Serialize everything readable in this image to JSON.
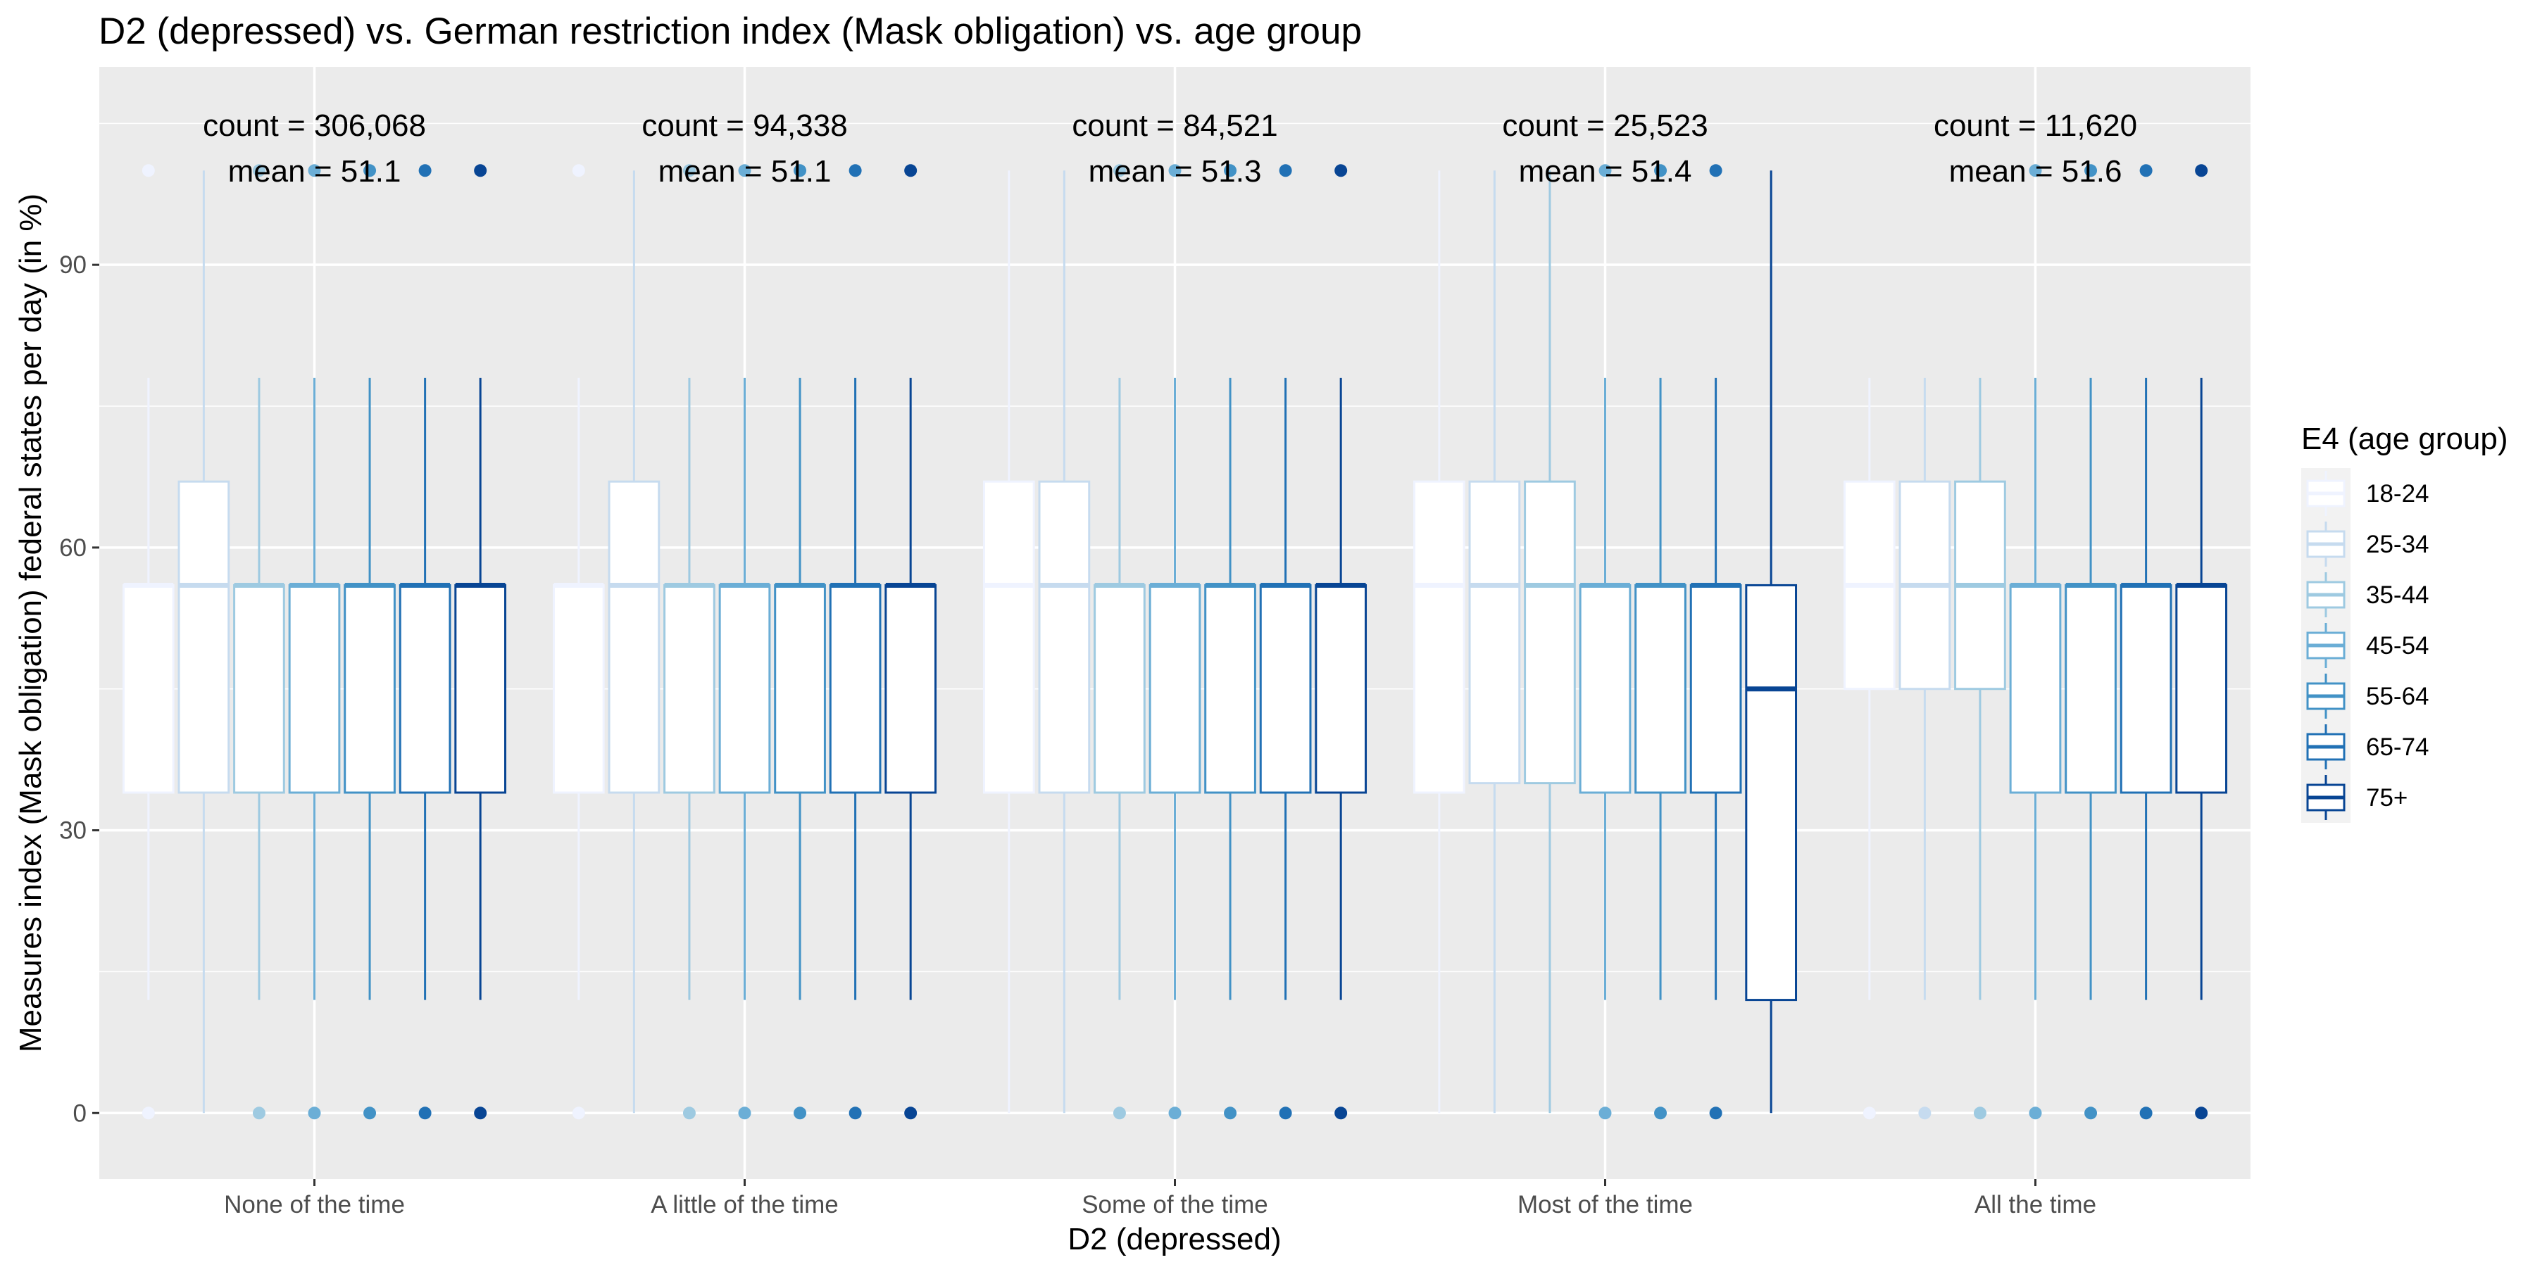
{
  "chart_data": {
    "type": "boxplot",
    "title": "D2 (depressed) vs. German restriction index (Mask obligation) vs. age group",
    "xlabel": "D2 (depressed)",
    "ylabel": "Measures index (Mask obligation) federal states per day (in %)",
    "ylim": [
      -7,
      111
    ],
    "yticks": [
      0,
      30,
      60,
      90
    ],
    "grid": true,
    "background": "#ebebeb",
    "legend": {
      "title": "E4 (age group)",
      "position": "right",
      "groups": [
        "18-24",
        "25-34",
        "35-44",
        "45-54",
        "55-64",
        "65-74",
        "75+"
      ],
      "colors": [
        "#eff3ff",
        "#c6dbef",
        "#9ecae1",
        "#6baed6",
        "#4292c6",
        "#2171b5",
        "#084594"
      ]
    },
    "categories": [
      "None of the time",
      "A little of the time",
      "Some of the time",
      "Most of the time",
      "All the time"
    ],
    "annotations": [
      {
        "count": "count = 306,068",
        "mean": "mean = 51.1"
      },
      {
        "count": "count = 94,338",
        "mean": "mean = 51.1"
      },
      {
        "count": "count = 84,521",
        "mean": "mean = 51.3"
      },
      {
        "count": "count = 25,523",
        "mean": "mean = 51.4"
      },
      {
        "count": "count = 11,620",
        "mean": "mean = 51.6"
      }
    ],
    "boxes": [
      [
        {
          "lw": 12,
          "q1": 34,
          "med": 56,
          "q3": 56,
          "uw": 78,
          "out": [
            0,
            100
          ]
        },
        {
          "lw": 0,
          "q1": 34,
          "med": 56,
          "q3": 67,
          "uw": 100,
          "out": []
        },
        {
          "lw": 12,
          "q1": 34,
          "med": 56,
          "q3": 56,
          "uw": 78,
          "out": [
            0,
            100
          ]
        },
        {
          "lw": 12,
          "q1": 34,
          "med": 56,
          "q3": 56,
          "uw": 78,
          "out": [
            0,
            100
          ]
        },
        {
          "lw": 12,
          "q1": 34,
          "med": 56,
          "q3": 56,
          "uw": 78,
          "out": [
            0,
            100
          ]
        },
        {
          "lw": 12,
          "q1": 34,
          "med": 56,
          "q3": 56,
          "uw": 78,
          "out": [
            0,
            100
          ]
        },
        {
          "lw": 12,
          "q1": 34,
          "med": 56,
          "q3": 56,
          "uw": 78,
          "out": [
            0,
            100
          ]
        }
      ],
      [
        {
          "lw": 12,
          "q1": 34,
          "med": 56,
          "q3": 56,
          "uw": 78,
          "out": [
            0,
            100
          ]
        },
        {
          "lw": 0,
          "q1": 34,
          "med": 56,
          "q3": 67,
          "uw": 100,
          "out": []
        },
        {
          "lw": 12,
          "q1": 34,
          "med": 56,
          "q3": 56,
          "uw": 78,
          "out": [
            0,
            100
          ]
        },
        {
          "lw": 12,
          "q1": 34,
          "med": 56,
          "q3": 56,
          "uw": 78,
          "out": [
            0,
            100
          ]
        },
        {
          "lw": 12,
          "q1": 34,
          "med": 56,
          "q3": 56,
          "uw": 78,
          "out": [
            0,
            100
          ]
        },
        {
          "lw": 12,
          "q1": 34,
          "med": 56,
          "q3": 56,
          "uw": 78,
          "out": [
            0,
            100
          ]
        },
        {
          "lw": 12,
          "q1": 34,
          "med": 56,
          "q3": 56,
          "uw": 78,
          "out": [
            0,
            100
          ]
        }
      ],
      [
        {
          "lw": 0,
          "q1": 34,
          "med": 56,
          "q3": 67,
          "uw": 100,
          "out": []
        },
        {
          "lw": 0,
          "q1": 34,
          "med": 56,
          "q3": 67,
          "uw": 100,
          "out": []
        },
        {
          "lw": 12,
          "q1": 34,
          "med": 56,
          "q3": 56,
          "uw": 78,
          "out": [
            0,
            100
          ]
        },
        {
          "lw": 12,
          "q1": 34,
          "med": 56,
          "q3": 56,
          "uw": 78,
          "out": [
            0,
            100
          ]
        },
        {
          "lw": 12,
          "q1": 34,
          "med": 56,
          "q3": 56,
          "uw": 78,
          "out": [
            0,
            100
          ]
        },
        {
          "lw": 12,
          "q1": 34,
          "med": 56,
          "q3": 56,
          "uw": 78,
          "out": [
            0,
            100
          ]
        },
        {
          "lw": 12,
          "q1": 34,
          "med": 56,
          "q3": 56,
          "uw": 78,
          "out": [
            0,
            100
          ]
        }
      ],
      [
        {
          "lw": 0,
          "q1": 34,
          "med": 56,
          "q3": 67,
          "uw": 100,
          "out": []
        },
        {
          "lw": 0,
          "q1": 35,
          "med": 56,
          "q3": 67,
          "uw": 100,
          "out": []
        },
        {
          "lw": 0,
          "q1": 35,
          "med": 56,
          "q3": 67,
          "uw": 100,
          "out": []
        },
        {
          "lw": 12,
          "q1": 34,
          "med": 56,
          "q3": 56,
          "uw": 78,
          "out": [
            0,
            100
          ]
        },
        {
          "lw": 12,
          "q1": 34,
          "med": 56,
          "q3": 56,
          "uw": 78,
          "out": [
            0,
            100
          ]
        },
        {
          "lw": 12,
          "q1": 34,
          "med": 56,
          "q3": 56,
          "uw": 78,
          "out": [
            0,
            100
          ]
        },
        {
          "lw": 0,
          "q1": 12,
          "med": 45,
          "q3": 56,
          "uw": 100,
          "out": []
        }
      ],
      [
        {
          "lw": 12,
          "q1": 45,
          "med": 56,
          "q3": 67,
          "uw": 78,
          "out": [
            0
          ]
        },
        {
          "lw": 12,
          "q1": 45,
          "med": 56,
          "q3": 67,
          "uw": 78,
          "out": [
            0
          ]
        },
        {
          "lw": 12,
          "q1": 45,
          "med": 56,
          "q3": 67,
          "uw": 78,
          "out": [
            0
          ]
        },
        {
          "lw": 12,
          "q1": 34,
          "med": 56,
          "q3": 56,
          "uw": 78,
          "out": [
            0,
            100
          ]
        },
        {
          "lw": 12,
          "q1": 34,
          "med": 56,
          "q3": 56,
          "uw": 78,
          "out": [
            0,
            100
          ]
        },
        {
          "lw": 12,
          "q1": 34,
          "med": 56,
          "q3": 56,
          "uw": 78,
          "out": [
            0,
            100
          ]
        },
        {
          "lw": 12,
          "q1": 34,
          "med": 56,
          "q3": 56,
          "uw": 78,
          "out": [
            0,
            100
          ]
        }
      ]
    ]
  }
}
